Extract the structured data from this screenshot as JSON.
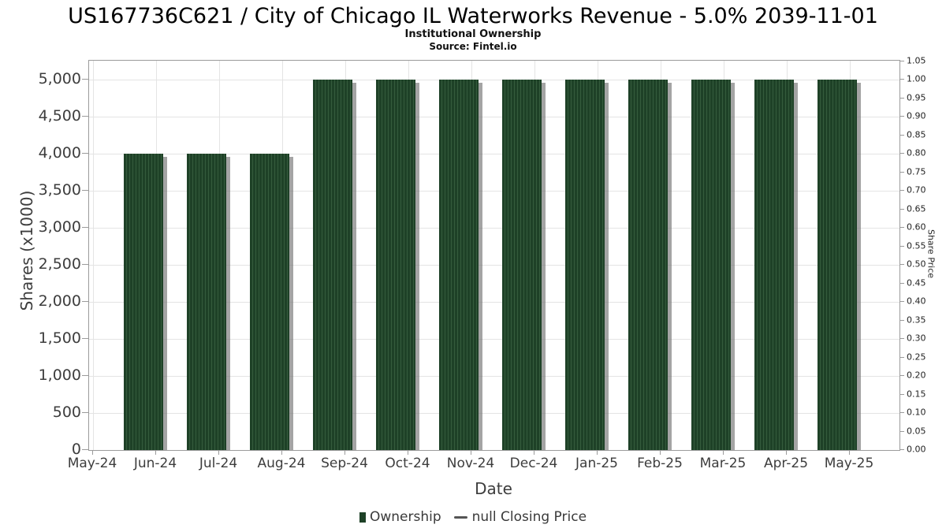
{
  "header": {
    "title": "US167736C621 / City of Chicago IL Waterworks Revenue - 5.0% 2039-11-01",
    "subtitle": "Institutional Ownership",
    "source": "Source: Fintel.io"
  },
  "chart_data": {
    "type": "bar",
    "title": "US167736C621 / City of Chicago IL Waterworks Revenue - 5.0% 2039-11-01",
    "subtitle": "Institutional Ownership",
    "source": "Source: Fintel.io",
    "categories": [
      "May-24",
      "Jun-24",
      "Jul-24",
      "Aug-24",
      "Sep-24",
      "Oct-24",
      "Nov-24",
      "Dec-24",
      "Jan-25",
      "Feb-25",
      "Mar-25",
      "Apr-25",
      "May-25"
    ],
    "series": [
      {
        "name": "Ownership",
        "type": "bar",
        "color": "#1e4127",
        "hatch": "vertical",
        "hatch_color": "#355c3d",
        "values": [
          null,
          4000,
          4000,
          4000,
          5000,
          5000,
          5000,
          5000,
          5000,
          5000,
          5000,
          5000,
          5000
        ]
      },
      {
        "name": "null Closing Price",
        "type": "line",
        "color": "#555555",
        "values": []
      }
    ],
    "xlabel": "Date",
    "ylabel_left": "Shares (x1000)",
    "ylabel_right": "Share Price",
    "yticks_left": {
      "values": [
        0,
        500,
        1000,
        1500,
        2000,
        2500,
        3000,
        3500,
        4000,
        4500,
        5000
      ],
      "labels": [
        "0",
        "500",
        "1,000",
        "1,500",
        "2,000",
        "2,500",
        "3,000",
        "3,500",
        "4,000",
        "4,500",
        "5,000"
      ]
    },
    "yticks_right": {
      "values": [
        0.0,
        0.05,
        0.1,
        0.15,
        0.2,
        0.25,
        0.3,
        0.35,
        0.4,
        0.45,
        0.5,
        0.55,
        0.6,
        0.65,
        0.7,
        0.75,
        0.8,
        0.85,
        0.9,
        0.95,
        1.0,
        1.05
      ],
      "labels": [
        "0.00",
        "0.05",
        "0.10",
        "0.15",
        "0.20",
        "0.25",
        "0.30",
        "0.35",
        "0.40",
        "0.45",
        "0.50",
        "0.55",
        "0.60",
        "0.65",
        "0.70",
        "0.75",
        "0.80",
        "0.85",
        "0.90",
        "0.95",
        "1.00",
        "1.05"
      ]
    },
    "ylim_left": [
      0,
      5250
    ],
    "ylim_right": [
      0,
      1.05
    ],
    "grid": true,
    "legend_position": "bottom"
  },
  "legend": {
    "items": [
      {
        "label": "Ownership",
        "marker": "square",
        "color": "#1e4127"
      },
      {
        "label": "null Closing Price",
        "marker": "dash",
        "color": "#555555"
      }
    ]
  }
}
